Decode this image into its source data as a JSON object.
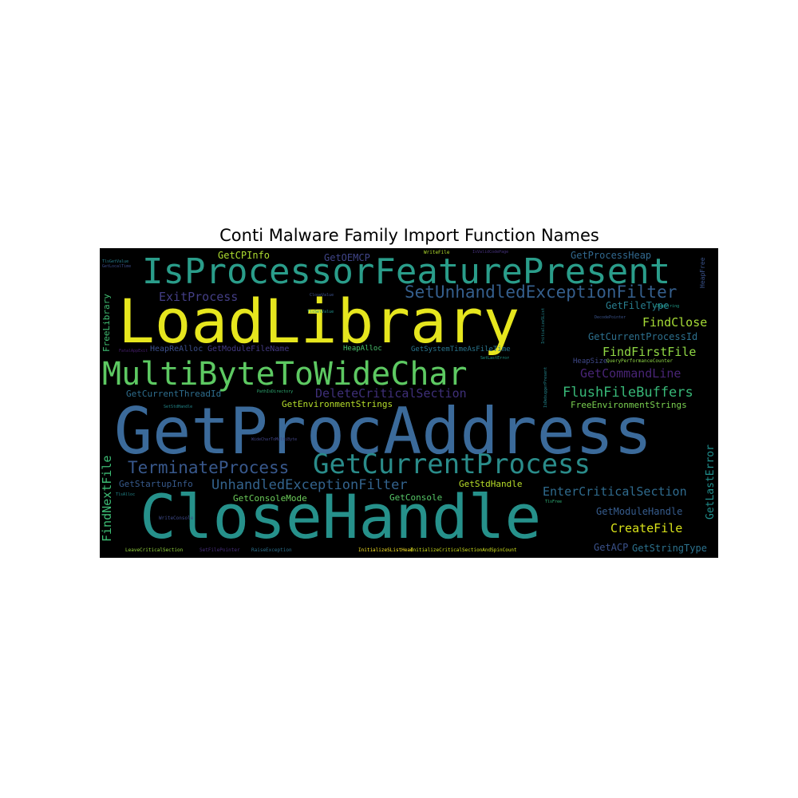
{
  "title": "Conti Malware Family Import Function Names",
  "words": [
    {
      "text": "GetProcAddress",
      "color": "#3b6a9a"
    },
    {
      "text": "CloseHandle",
      "color": "#26918b"
    },
    {
      "text": "LoadLibrary",
      "color": "#e6e61e"
    },
    {
      "text": "MultiByteToWideChar",
      "color": "#5dc962"
    },
    {
      "text": "IsProcessorFeaturePresent",
      "color": "#2a9d8a"
    },
    {
      "text": "GetCurrentProcess",
      "color": "#2a8c8a"
    },
    {
      "text": "SetUnhandledExceptionFilter",
      "color": "#355f8d"
    },
    {
      "text": "TerminateProcess",
      "color": "#38588c"
    },
    {
      "text": "UnhandledExceptionFilter",
      "color": "#33638d"
    },
    {
      "text": "FlushFileBuffers",
      "color": "#38b878"
    },
    {
      "text": "DeleteCriticalSection",
      "color": "#3e2f78"
    },
    {
      "text": "GetCommandLine",
      "color": "#482475"
    },
    {
      "text": "FindFirstFile",
      "color": "#8fd744"
    },
    {
      "text": "EnterCriticalSection",
      "color": "#2f6b8e"
    },
    {
      "text": "ExitProcess",
      "color": "#433e85"
    },
    {
      "text": "FindClose",
      "color": "#a5db36"
    },
    {
      "text": "CreateFile",
      "color": "#d8e219"
    },
    {
      "text": "GetCurrentProcessId",
      "color": "#2d708e"
    },
    {
      "text": "GetProcessHeap",
      "color": "#31688e"
    },
    {
      "text": "GetFileType",
      "color": "#287d8e"
    },
    {
      "text": "GetModuleHandle",
      "color": "#365c8d"
    },
    {
      "text": "GetStringType",
      "color": "#2c728e"
    },
    {
      "text": "GetACP",
      "color": "#3b528b"
    },
    {
      "text": "GetCPInfo",
      "color": "#addc30"
    },
    {
      "text": "GetOEMCP",
      "color": "#404588"
    },
    {
      "text": "GetEnvironmentStrings",
      "color": "#b5de2b"
    },
    {
      "text": "FreeEnvironmentStrings",
      "color": "#7ad151"
    },
    {
      "text": "GetCurrentThreadId",
      "color": "#2e6e8e"
    },
    {
      "text": "GetStartupInfo",
      "color": "#375a8c"
    },
    {
      "text": "GetStdHandle",
      "color": "#b8de29"
    },
    {
      "text": "GetConsoleMode",
      "color": "#6ccd5a"
    },
    {
      "text": "GetConsole",
      "color": "#56c667"
    },
    {
      "text": "GetModuleFileName",
      "color": "#443a83"
    },
    {
      "text": "HeapReAlloc",
      "color": "#3c4f8a"
    },
    {
      "text": "HeapAlloc",
      "color": "#4ac16d"
    },
    {
      "text": "GetSystemTimeAsFileTime",
      "color": "#2a768e"
    },
    {
      "text": "HeapSize",
      "color": "#3f4889"
    },
    {
      "text": "QueryPerformanceCounter",
      "color": "#8ed645"
    },
    {
      "text": "FreeLibrary",
      "color": "#40bd72"
    },
    {
      "text": "FindNextFile",
      "color": "#3dbc74"
    },
    {
      "text": "GetLastError",
      "color": "#218f8d"
    },
    {
      "text": "HeapFree",
      "color": "#3a538b"
    },
    {
      "text": "WriteFile",
      "color": "#b2dd2d"
    },
    {
      "text": "InitializeSListHead",
      "color": "#fde725"
    },
    {
      "text": "InitializeCriticalSectionAndSpinCount",
      "color": "#d0e11c"
    },
    {
      "text": "RaiseException",
      "color": "#2c718e"
    },
    {
      "text": "SetFilePointer",
      "color": "#472e7c"
    },
    {
      "text": "LeaveCriticalSection",
      "color": "#97d83f"
    },
    {
      "text": "WriteConsole",
      "color": "#3e4a89"
    },
    {
      "text": "WideCharToMultiByte",
      "color": "#414487"
    },
    {
      "text": "TlsFree",
      "color": "#31b57b"
    },
    {
      "text": "TlsAlloc",
      "color": "#23898e"
    },
    {
      "text": "SetStdHandle",
      "color": "#238a8d"
    },
    {
      "text": "FatalAppExit",
      "color": "#481f70"
    },
    {
      "text": "GetLocalTime",
      "color": "#3d4d8a"
    },
    {
      "text": "SetLastError",
      "color": "#1f9a8a"
    },
    {
      "text": "IsDebuggerPresent",
      "color": "#24868e"
    },
    {
      "text": "InitializeSList",
      "color": "#25858e"
    },
    {
      "text": "DecodePointer",
      "color": "#3a548c"
    },
    {
      "text": "LCMapString",
      "color": "#1e9c89"
    },
    {
      "text": "CloseValue",
      "color": "#3c508b"
    },
    {
      "text": "IsValidCodePage",
      "color": "#46327e"
    },
    {
      "text": "PathIsDirectory",
      "color": "#32b67a"
    },
    {
      "text": "TlsGetValue",
      "color": "#277f8e"
    },
    {
      "text": "TlsSetValue",
      "color": "#20928c"
    }
  ]
}
